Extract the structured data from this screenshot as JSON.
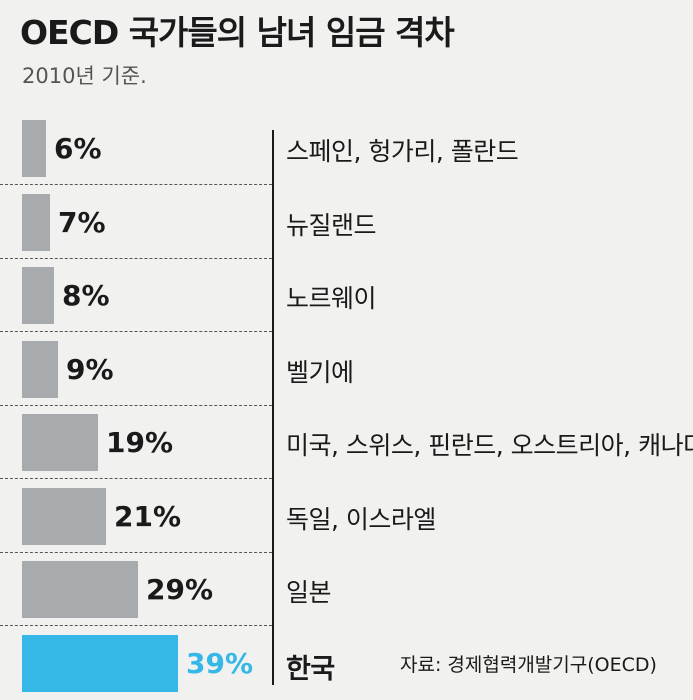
{
  "title": "OECD 국가들의 남녀 임금 격차",
  "subtitle": "2010년 기준.",
  "source": "자료: 경제협력개발기구(OECD)",
  "colors": {
    "bar": "#a7abad",
    "highlight": "#35b8e8",
    "background": "#f1f1ef"
  },
  "chart_data": {
    "type": "bar",
    "orientation": "horizontal",
    "categories": [
      "스페인, 헝가리, 폴란드",
      "뉴질랜드",
      "노르웨이",
      "벨기에",
      "미국, 스위스, 핀란드, 오스트리아, 캐나다",
      "독일, 이스라엘",
      "일본",
      "한국"
    ],
    "values": [
      6,
      7,
      8,
      9,
      19,
      21,
      29,
      39
    ],
    "value_labels": [
      "6%",
      "7%",
      "8%",
      "9%",
      "19%",
      "21%",
      "29%",
      "39%"
    ],
    "highlight_index": 7,
    "unit": "%",
    "grid": false
  }
}
